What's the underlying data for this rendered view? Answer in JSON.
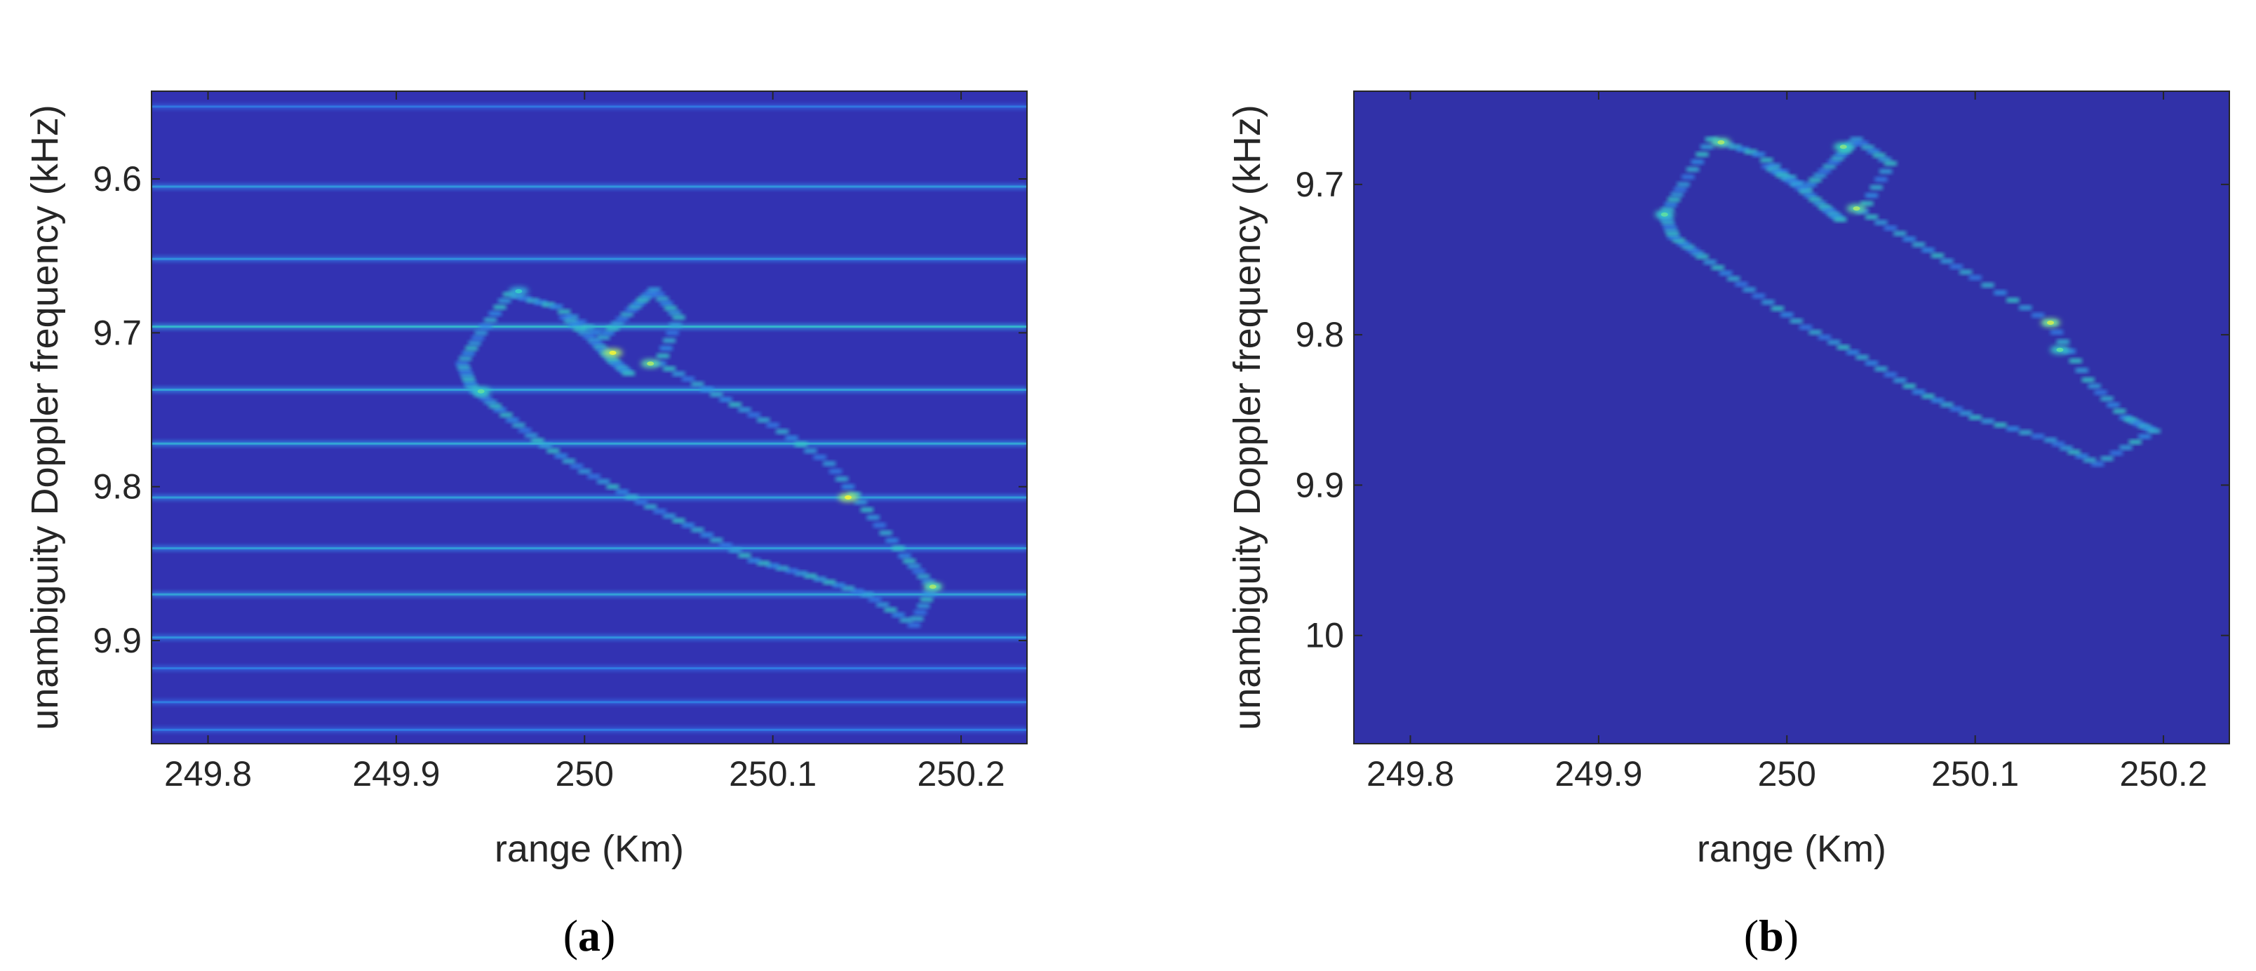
{
  "chart_data": [
    {
      "type": "heatmap",
      "caption": {
        "open": "(",
        "letter": "a",
        "close": ")"
      },
      "xlabel": "range (Km)",
      "ylabel": "unambiguity Doppler frequency (kHz)",
      "xlim": [
        249.77,
        250.235
      ],
      "ylim": [
        9.543,
        9.967
      ],
      "y_direction": "reversed",
      "xticks": [
        249.8,
        249.9,
        250,
        250.1,
        250.2
      ],
      "xtick_labels": [
        "249.8",
        "249.9",
        "250",
        "250.1",
        "250.2"
      ],
      "yticks": [
        9.6,
        9.7,
        9.8,
        9.9
      ],
      "ytick_labels": [
        "9.6",
        "9.7",
        "9.8",
        "9.9"
      ],
      "colormap": [
        "#2b2b9a",
        "#3a46d8",
        "#2f8fe8",
        "#38d6c0",
        "#e8f040"
      ],
      "background_color": "#3232b2",
      "horizontal_stripes": [
        {
          "y": 9.553,
          "intensity": 0.25
        },
        {
          "y": 9.605,
          "intensity": 0.55
        },
        {
          "y": 9.652,
          "intensity": 0.5
        },
        {
          "y": 9.696,
          "intensity": 0.85
        },
        {
          "y": 9.737,
          "intensity": 0.65
        },
        {
          "y": 9.772,
          "intensity": 0.7
        },
        {
          "y": 9.807,
          "intensity": 0.6
        },
        {
          "y": 9.84,
          "intensity": 0.6
        },
        {
          "y": 9.87,
          "intensity": 0.65
        },
        {
          "y": 9.898,
          "intensity": 0.5
        },
        {
          "y": 9.918,
          "intensity": 0.3
        },
        {
          "y": 9.94,
          "intensity": 0.3
        },
        {
          "y": 9.958,
          "intensity": 0.3
        }
      ],
      "target_outline": [
        {
          "x": 249.935,
          "y": 9.72
        },
        {
          "x": 249.945,
          "y": 9.7
        },
        {
          "x": 249.96,
          "y": 9.675
        },
        {
          "x": 249.985,
          "y": 9.683
        },
        {
          "x": 250.01,
          "y": 9.703
        },
        {
          "x": 250.025,
          "y": 9.685
        },
        {
          "x": 250.037,
          "y": 9.672
        },
        {
          "x": 250.05,
          "y": 9.69
        },
        {
          "x": 250.04,
          "y": 9.72
        },
        {
          "x": 250.07,
          "y": 9.74
        },
        {
          "x": 250.1,
          "y": 9.76
        },
        {
          "x": 250.13,
          "y": 9.785
        },
        {
          "x": 250.15,
          "y": 9.815
        },
        {
          "x": 250.17,
          "y": 9.845
        },
        {
          "x": 250.185,
          "y": 9.865
        },
        {
          "x": 250.175,
          "y": 9.89
        },
        {
          "x": 250.15,
          "y": 9.87
        },
        {
          "x": 250.12,
          "y": 9.858
        },
        {
          "x": 250.09,
          "y": 9.848
        },
        {
          "x": 250.06,
          "y": 9.828
        },
        {
          "x": 250.03,
          "y": 9.81
        },
        {
          "x": 250.0,
          "y": 9.79
        },
        {
          "x": 249.975,
          "y": 9.77
        },
        {
          "x": 249.955,
          "y": 9.75
        },
        {
          "x": 249.94,
          "y": 9.735
        },
        {
          "x": 249.935,
          "y": 9.72
        }
      ],
      "target_inner": [
        {
          "x": 249.99,
          "y": 9.69
        },
        {
          "x": 250.005,
          "y": 9.705
        },
        {
          "x": 250.015,
          "y": 9.718
        },
        {
          "x": 250.025,
          "y": 9.728
        }
      ],
      "peaks": [
        {
          "x": 250.015,
          "y": 9.713,
          "intensity": 0.9
        },
        {
          "x": 250.035,
          "y": 9.72,
          "intensity": 0.8
        },
        {
          "x": 250.14,
          "y": 9.807,
          "intensity": 0.9
        },
        {
          "x": 250.185,
          "y": 9.865,
          "intensity": 0.8
        },
        {
          "x": 249.945,
          "y": 9.738,
          "intensity": 0.7
        },
        {
          "x": 249.965,
          "y": 9.673,
          "intensity": 0.6
        }
      ]
    },
    {
      "type": "heatmap",
      "caption": {
        "open": "(",
        "letter": "b",
        "close": ")"
      },
      "xlabel": "range (Km)",
      "ylabel": "unambiguity Doppler frequency (kHz)",
      "xlim": [
        249.77,
        250.235
      ],
      "ylim": [
        9.638,
        10.072
      ],
      "y_direction": "reversed",
      "xticks": [
        249.8,
        249.9,
        250,
        250.1,
        250.2
      ],
      "xtick_labels": [
        "249.8",
        "249.9",
        "250",
        "250.1",
        "250.2"
      ],
      "yticks": [
        9.7,
        9.8,
        9.9,
        10
      ],
      "ytick_labels": [
        "9.7",
        "9.8",
        "9.9",
        "10"
      ],
      "colormap": [
        "#2b2b9a",
        "#3a46d8",
        "#2f8fe8",
        "#38d6c0",
        "#e8f040"
      ],
      "background_color": "#3131a8",
      "horizontal_stripes": [],
      "target_outline": [
        {
          "x": 249.935,
          "y": 9.72
        },
        {
          "x": 249.945,
          "y": 9.7
        },
        {
          "x": 249.96,
          "y": 9.67
        },
        {
          "x": 249.985,
          "y": 9.68
        },
        {
          "x": 250.01,
          "y": 9.703
        },
        {
          "x": 250.025,
          "y": 9.685
        },
        {
          "x": 250.037,
          "y": 9.67
        },
        {
          "x": 250.055,
          "y": 9.686
        },
        {
          "x": 250.04,
          "y": 9.718
        },
        {
          "x": 250.07,
          "y": 9.74
        },
        {
          "x": 250.1,
          "y": 9.762
        },
        {
          "x": 250.14,
          "y": 9.792
        },
        {
          "x": 250.16,
          "y": 9.83
        },
        {
          "x": 250.18,
          "y": 9.855
        },
        {
          "x": 250.195,
          "y": 9.864
        },
        {
          "x": 250.165,
          "y": 9.886
        },
        {
          "x": 250.14,
          "y": 9.87
        },
        {
          "x": 250.1,
          "y": 9.855
        },
        {
          "x": 250.07,
          "y": 9.838
        },
        {
          "x": 250.04,
          "y": 9.815
        },
        {
          "x": 250.01,
          "y": 9.795
        },
        {
          "x": 249.98,
          "y": 9.77
        },
        {
          "x": 249.955,
          "y": 9.748
        },
        {
          "x": 249.94,
          "y": 9.735
        },
        {
          "x": 249.935,
          "y": 9.72
        }
      ],
      "target_inner": [
        {
          "x": 249.99,
          "y": 9.688
        },
        {
          "x": 250.005,
          "y": 9.7
        },
        {
          "x": 250.02,
          "y": 9.715
        },
        {
          "x": 250.03,
          "y": 9.725
        }
      ],
      "peaks": [
        {
          "x": 249.965,
          "y": 9.672,
          "intensity": 0.8
        },
        {
          "x": 250.037,
          "y": 9.716,
          "intensity": 0.8
        },
        {
          "x": 250.14,
          "y": 9.792,
          "intensity": 0.85
        },
        {
          "x": 250.145,
          "y": 9.81,
          "intensity": 0.7
        },
        {
          "x": 249.935,
          "y": 9.72,
          "intensity": 0.7
        },
        {
          "x": 250.03,
          "y": 9.675,
          "intensity": 0.75
        }
      ]
    }
  ]
}
